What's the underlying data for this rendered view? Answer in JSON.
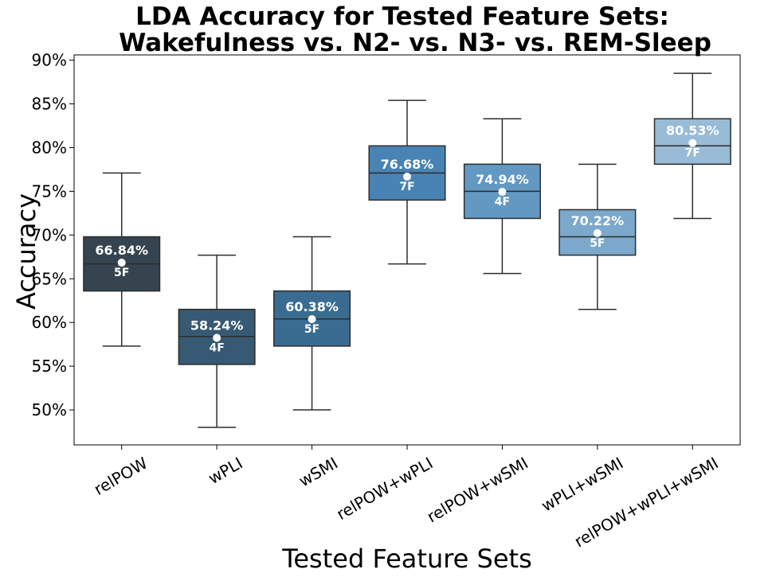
{
  "chart_data": {
    "type": "box",
    "title": [
      "LDA Accuracy for Tested Feature Sets:",
      "Wakefulness vs. N2- vs. N3- vs. REM-Sleep"
    ],
    "xlabel": "Tested Feature Sets",
    "ylabel": "Accuracy",
    "ylim": [
      46,
      90.6
    ],
    "yticks": [
      50,
      55,
      60,
      65,
      70,
      75,
      80,
      85,
      90
    ],
    "ytick_labels": [
      "50%",
      "55%",
      "60%",
      "65%",
      "70%",
      "75%",
      "80%",
      "85%",
      "90%"
    ],
    "categories": [
      "relPOW",
      "wPLI",
      "wSMI",
      "relPOW+wPLI",
      "relPOW+wSMI",
      "wPLI+wSMI",
      "relPOW+wPLI+wSMI"
    ],
    "boxes": [
      {
        "whisker_low": 57.3,
        "q1": 63.6,
        "median": 66.7,
        "q3": 69.8,
        "whisker_high": 77.1,
        "mean": 66.84,
        "mean_label": "66.84%",
        "features": "5F",
        "color": "#36444f"
      },
      {
        "whisker_low": 48.0,
        "q1": 55.2,
        "median": 58.4,
        "q3": 61.5,
        "whisker_high": 67.7,
        "mean": 58.24,
        "mean_label": "58.24%",
        "features": "4F",
        "color": "#365a74"
      },
      {
        "whisker_low": 50.0,
        "q1": 57.3,
        "median": 60.4,
        "q3": 63.6,
        "whisker_high": 69.8,
        "mean": 60.38,
        "mean_label": "60.38%",
        "features": "5F",
        "color": "#3a6c92"
      },
      {
        "whisker_low": 66.7,
        "q1": 74.0,
        "median": 77.1,
        "q3": 80.2,
        "whisker_high": 85.4,
        "mean": 76.68,
        "mean_label": "76.68%",
        "features": "7F",
        "color": "#4883b3"
      },
      {
        "whisker_low": 65.6,
        "q1": 71.9,
        "median": 75.0,
        "q3": 78.1,
        "whisker_high": 83.3,
        "mean": 74.94,
        "mean_label": "74.94%",
        "features": "4F",
        "color": "#6398c2"
      },
      {
        "whisker_low": 61.5,
        "q1": 67.7,
        "median": 69.8,
        "q3": 72.9,
        "whisker_high": 78.1,
        "mean": 70.22,
        "mean_label": "70.22%",
        "features": "5F",
        "color": "#7ba8cb"
      },
      {
        "whisker_low": 71.9,
        "q1": 78.1,
        "median": 80.2,
        "q3": 83.3,
        "whisker_high": 88.5,
        "mean": 80.53,
        "mean_label": "80.53%",
        "features": "7F",
        "color": "#98bbd6"
      }
    ],
    "grid": false,
    "legend": "none"
  }
}
